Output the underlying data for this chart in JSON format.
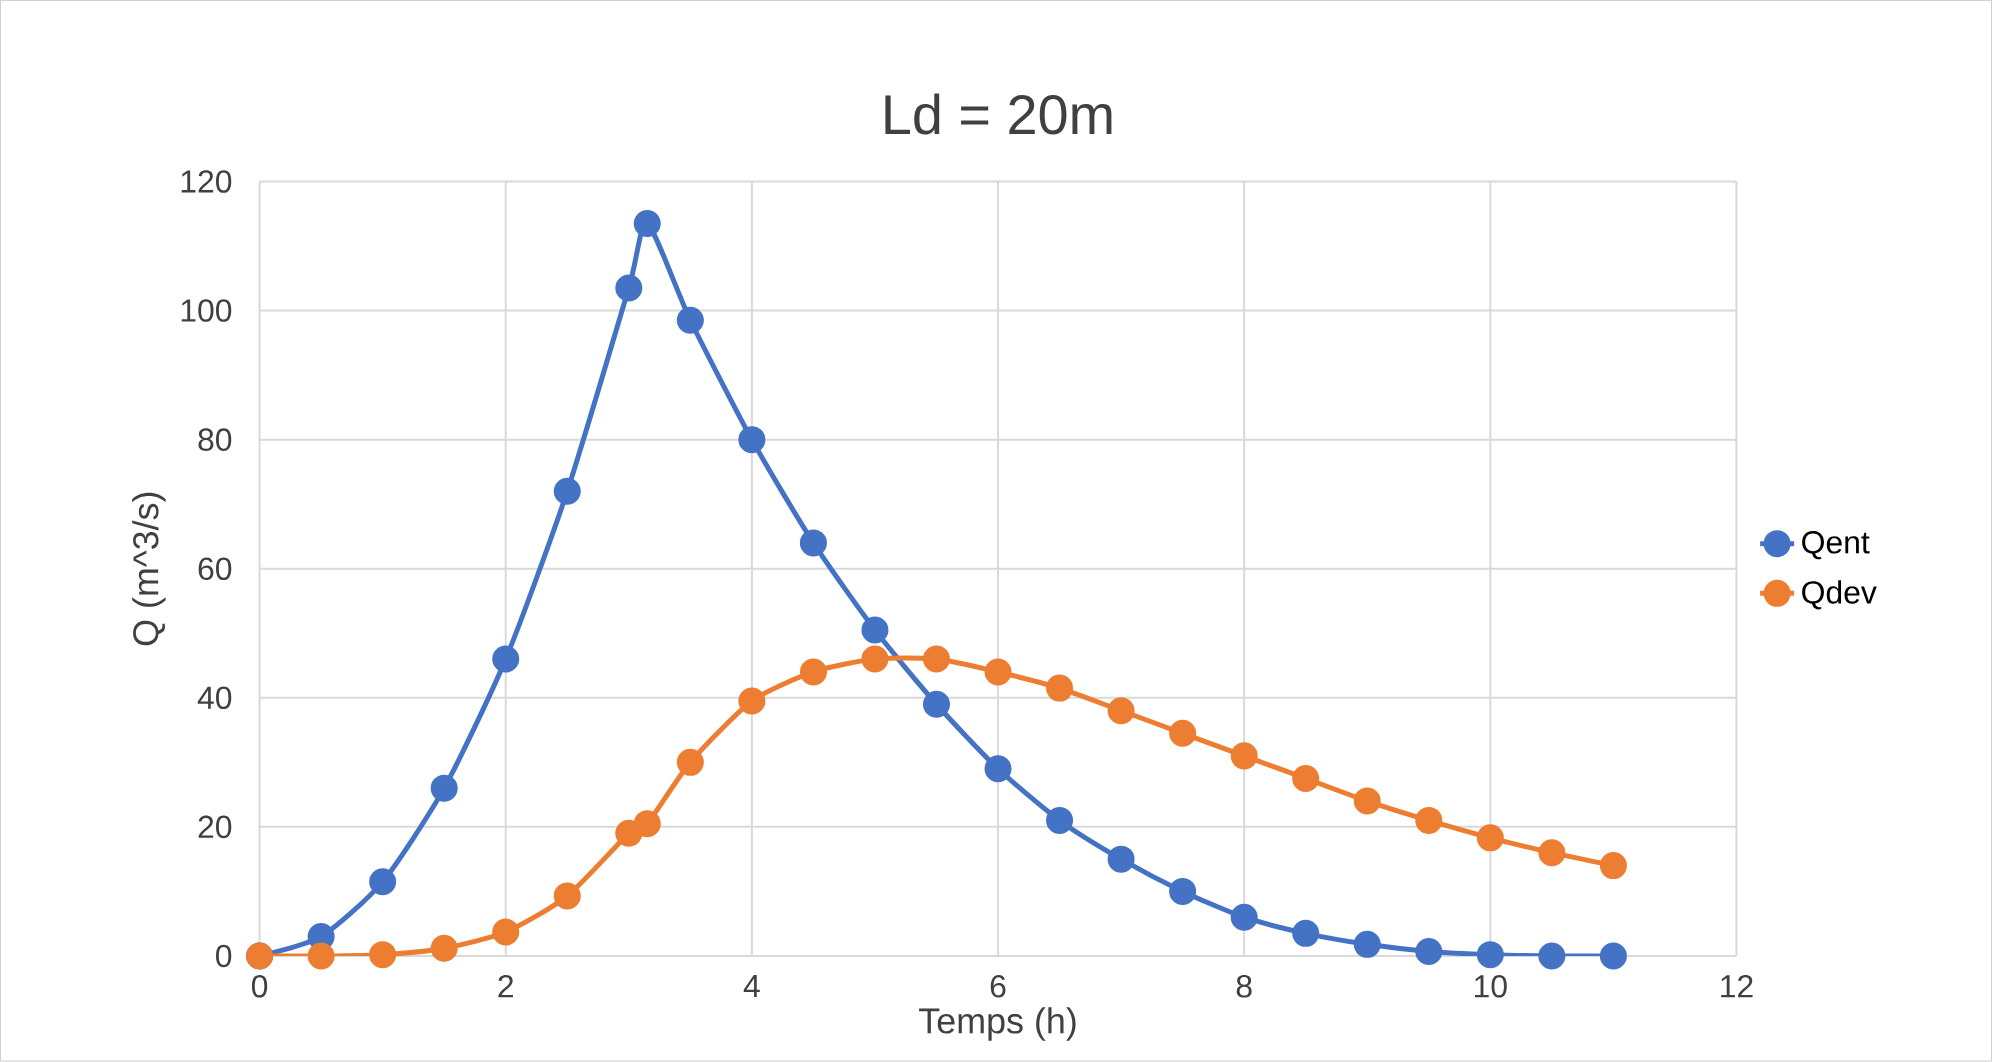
{
  "chart_data": {
    "type": "line",
    "title": "Ld = 20m",
    "xlabel": "Temps (h)",
    "ylabel": "Q (m^3/s)",
    "x": [
      0,
      0.5,
      1,
      1.5,
      2,
      2.5,
      3,
      3.15,
      3.5,
      4,
      4.5,
      5,
      5.5,
      6,
      6.5,
      7,
      7.5,
      8,
      8.5,
      9,
      9.5,
      10,
      10.5,
      11
    ],
    "series": [
      {
        "name": "Qent",
        "color": "#4472c4",
        "values": [
          0,
          3,
          11.5,
          26,
          46,
          72,
          103.5,
          113.5,
          98.5,
          80,
          64,
          50.5,
          39,
          29,
          21,
          15,
          10,
          6,
          3.5,
          1.8,
          0.7,
          0.2,
          0,
          0
        ]
      },
      {
        "name": "Qdev",
        "color": "#ed7d31",
        "values": [
          0,
          0,
          0.2,
          1.2,
          3.7,
          9.3,
          19,
          20.5,
          30,
          39.5,
          44,
          46,
          46,
          44,
          41.5,
          38,
          34.5,
          31,
          27.5,
          24,
          21,
          18.3,
          16,
          14
        ]
      }
    ],
    "xlim": [
      0,
      12
    ],
    "xticks": [
      0,
      2,
      4,
      6,
      8,
      10,
      12
    ],
    "ylim": [
      0,
      120
    ],
    "yticks": [
      0,
      20,
      40,
      60,
      80,
      100,
      120
    ],
    "grid": true,
    "legend": "right",
    "marker": "circle",
    "line_style": "solid"
  }
}
